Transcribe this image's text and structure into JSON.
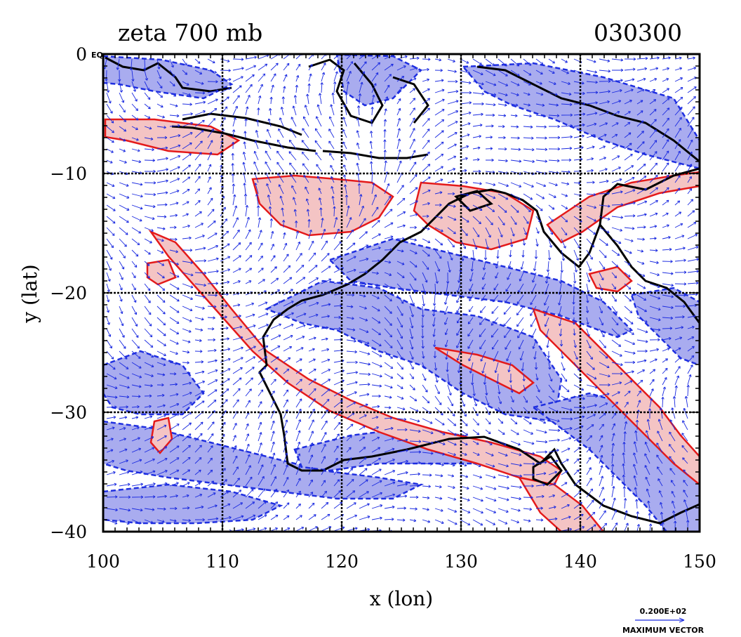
{
  "header": {
    "title": "zeta 700 mb",
    "timestamp": "030300"
  },
  "axes": {
    "xlabel": "x (lon)",
    "ylabel": "y (lat)",
    "x_ticks": [
      "100",
      "110",
      "120",
      "130",
      "140",
      "150"
    ],
    "y_ticks": [
      "0",
      "−10",
      "−20",
      "−30",
      "−40"
    ],
    "eq_marker": "EQ"
  },
  "legend": {
    "vector_value": "0.200E+02",
    "vector_label": "MAXIMUM VECTOR"
  },
  "map": {
    "lon_range": [
      100,
      150
    ],
    "lat_range": [
      -40,
      0
    ],
    "grid_lon": [
      110,
      120,
      130,
      140
    ],
    "grid_lat": [
      -10,
      -20,
      -30
    ],
    "colors": {
      "positive_fill": "#f4c4c4",
      "positive_line": "#e41a1a",
      "negative_fill": "#a9acef",
      "negative_line": "#1f2fe0",
      "coast": "#000000",
      "vector": "#1a2ae0"
    }
  }
}
